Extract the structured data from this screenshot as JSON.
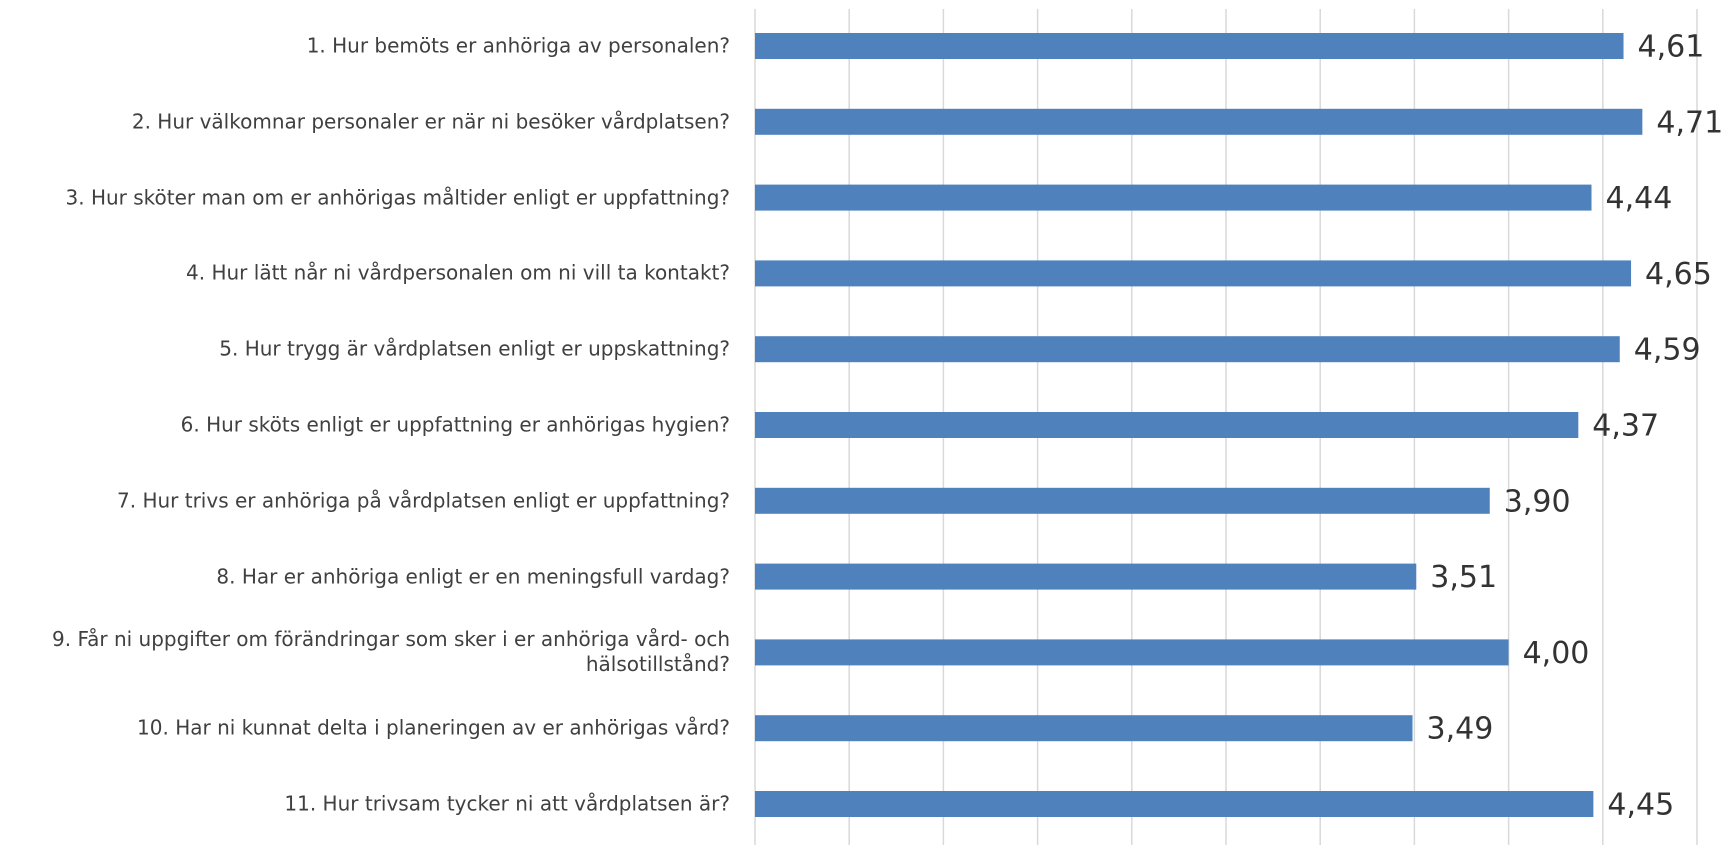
{
  "chart_data": {
    "type": "bar",
    "orientation": "horizontal",
    "categories": [
      "1. Hur bemöts er anhöriga av personalen?",
      "2. Hur välkomnar personaler er när ni besöker vårdplatsen?",
      "3. Hur sköter man om er anhörigas måltider enligt er uppfattning?",
      "4. Hur lätt når ni vårdpersonalen om ni vill ta kontakt?",
      "5. Hur trygg är vårdplatsen enligt er uppskattning?",
      "6. Hur sköts enligt er uppfattning er anhörigas hygien?",
      "7. Hur trivs er anhöriga på vårdplatsen enligt er uppfattning?",
      "8. Har er anhöriga enligt er en meningsfull vardag?",
      "9. Får ni uppgifter om förändringar som sker i er anhöriga vård- och\nhälsotillstånd?",
      "10. Har ni kunnat delta i planeringen av er anhörigas vård?",
      "11. Hur trivsam tycker ni att vårdplatsen är?"
    ],
    "values": [
      4.61,
      4.71,
      4.44,
      4.65,
      4.59,
      4.37,
      3.9,
      3.51,
      4.0,
      3.49,
      4.45
    ],
    "value_labels": [
      "4,61",
      "4,71",
      "4,44",
      "4,65",
      "4,59",
      "4,37",
      "3,90",
      "3,51",
      "4,00",
      "3,49",
      "4,45"
    ],
    "color": "#4f81bd",
    "xlim": [
      0,
      5
    ],
    "xticks": [
      0,
      0.5,
      1,
      1.5,
      2,
      2.5,
      3,
      3.5,
      4,
      4.5,
      5
    ],
    "grid": true
  }
}
